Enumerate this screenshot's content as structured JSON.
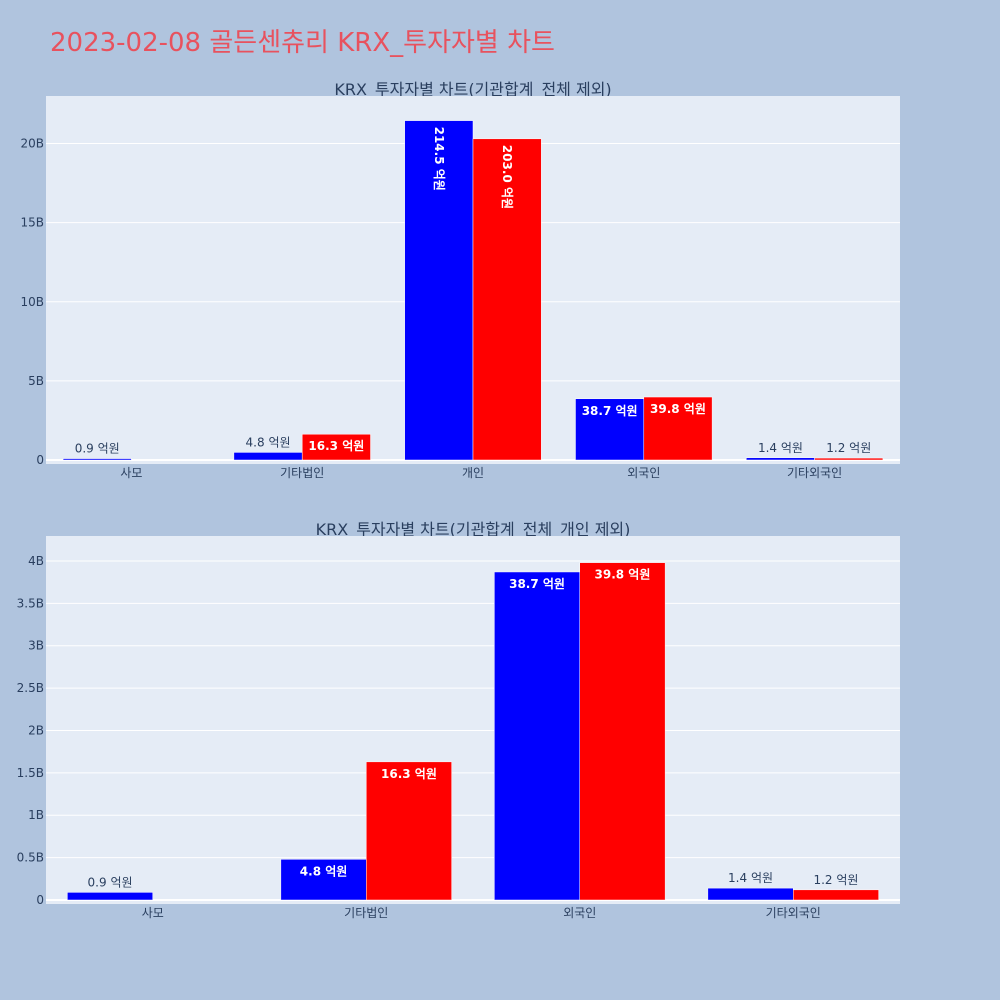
{
  "title": "2023-02-08 골든센츄리 KRX_투자자별 차트",
  "colors": {
    "series_a": "#0000ff",
    "series_b": "#ff0000",
    "plot_bg": "#e5ecf6",
    "page_bg": "#b0c4de"
  },
  "chart_data": [
    {
      "type": "bar",
      "title": "KRX_투자자별 차트(기관합계_전체 제외)",
      "categories": [
        "사모",
        "기타법인",
        "개인",
        "외국인",
        "기타외국인"
      ],
      "ylim": [
        0,
        22.5
      ],
      "yticks": [
        0,
        5,
        10,
        15,
        20
      ],
      "ytick_labels": [
        "0",
        "5B",
        "10B",
        "15B",
        "20B"
      ],
      "series": [
        {
          "values": [
            0.09,
            0.48,
            21.45,
            3.87,
            0.14
          ],
          "labels": [
            "0.9 억원",
            "4.8 억원",
            "214.5 억원",
            "38.7 억원",
            "1.4 억원"
          ]
        },
        {
          "values": [
            null,
            1.63,
            20.3,
            3.98,
            0.12
          ],
          "labels": [
            "",
            "16.3 억원",
            "203.0 억원",
            "39.8 억원",
            "1.2 억원"
          ]
        }
      ],
      "grid": true
    },
    {
      "type": "bar",
      "title": "KRX_투자자별 차트(기관합계_전체_개인 제외)",
      "categories": [
        "사모",
        "기타법인",
        "외국인",
        "기타외국인"
      ],
      "ylim": [
        0,
        4.2
      ],
      "yticks": [
        0,
        0.5,
        1,
        1.5,
        2,
        2.5,
        3,
        3.5,
        4
      ],
      "ytick_labels": [
        "0",
        "0.5B",
        "1B",
        "1.5B",
        "2B",
        "2.5B",
        "3B",
        "3.5B",
        "4B"
      ],
      "series": [
        {
          "values": [
            0.09,
            0.48,
            3.87,
            0.14
          ],
          "labels": [
            "0.9 억원",
            "4.8 억원",
            "38.7 억원",
            "1.4 억원"
          ]
        },
        {
          "values": [
            null,
            1.63,
            3.98,
            0.12
          ],
          "labels": [
            "",
            "16.3 억원",
            "39.8 억원",
            "1.2 억원"
          ]
        }
      ],
      "grid": true
    }
  ]
}
